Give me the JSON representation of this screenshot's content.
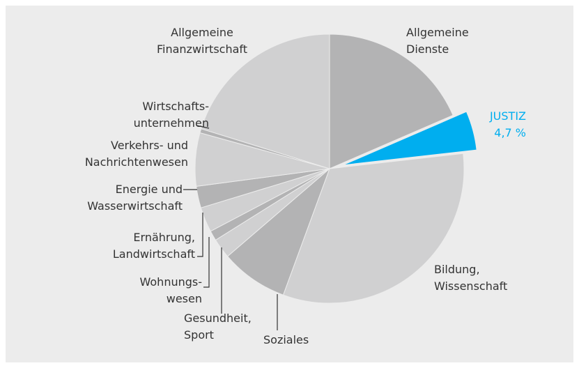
{
  "chart_data": {
    "type": "pie",
    "labels": [
      [
        "Allgemeine",
        "Dienste"
      ],
      [
        "JUSTIZ"
      ],
      [
        "Bildung,",
        "Wissenschaft"
      ],
      [
        "Soziales"
      ],
      [
        "Gesundheit,",
        "Sport"
      ],
      [
        "Wohnungs-",
        "wesen"
      ],
      [
        "Ernährung,",
        "Landwirtschaft"
      ],
      [
        "Energie und",
        "Wasserwirtschaft"
      ],
      [
        "Verkehrs- und",
        "Nachrichtenwesen"
      ],
      [
        "Wirtschafts-",
        "unternehmen"
      ],
      [
        "Allgemeine",
        "Finanzwirtschaft"
      ]
    ],
    "values": [
      18.5,
      4.7,
      32.4,
      8.1,
      2.4,
      1.2,
      3.0,
      2.6,
      6.4,
      0.5,
      20.2
    ],
    "value_labels": [
      null,
      "4,7 %",
      null,
      null,
      null,
      null,
      null,
      null,
      null,
      null,
      null
    ],
    "colors": [
      "#b3b3b4",
      "#00aeef",
      "#d0d0d1",
      "#b3b3b4",
      "#d0d0d1",
      "#b3b3b4",
      "#d0d0d1",
      "#b3b3b4",
      "#d0d0d1",
      "#b3b3b4",
      "#d0d0d1"
    ],
    "highlight_color": "#00aeef",
    "exploded": [
      1
    ]
  }
}
